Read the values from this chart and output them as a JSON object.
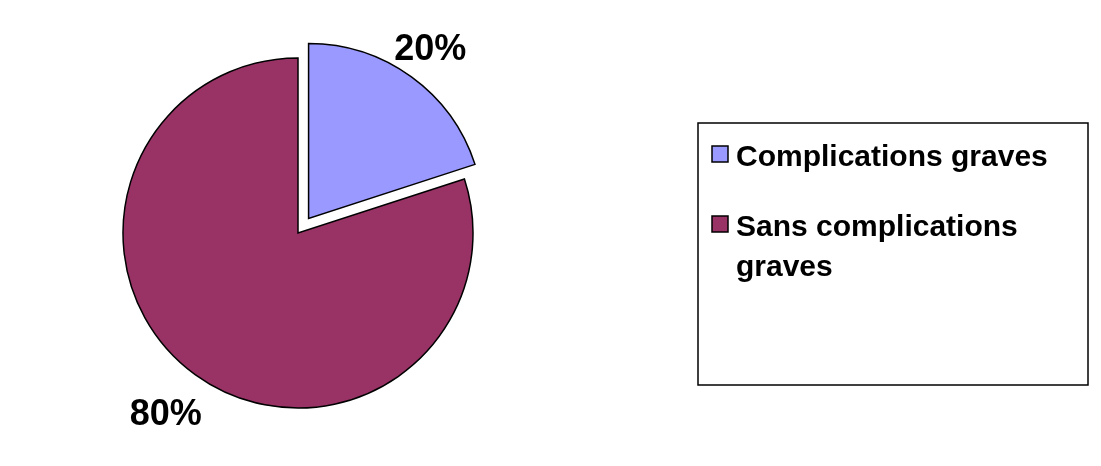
{
  "chart_data": {
    "type": "pie",
    "categories": [
      "Complications graves",
      "Sans complications graves"
    ],
    "values": [
      20,
      80
    ],
    "colors": [
      "#9999ff",
      "#993366"
    ],
    "value_labels": [
      "20%",
      "80%"
    ],
    "legend": "right"
  }
}
